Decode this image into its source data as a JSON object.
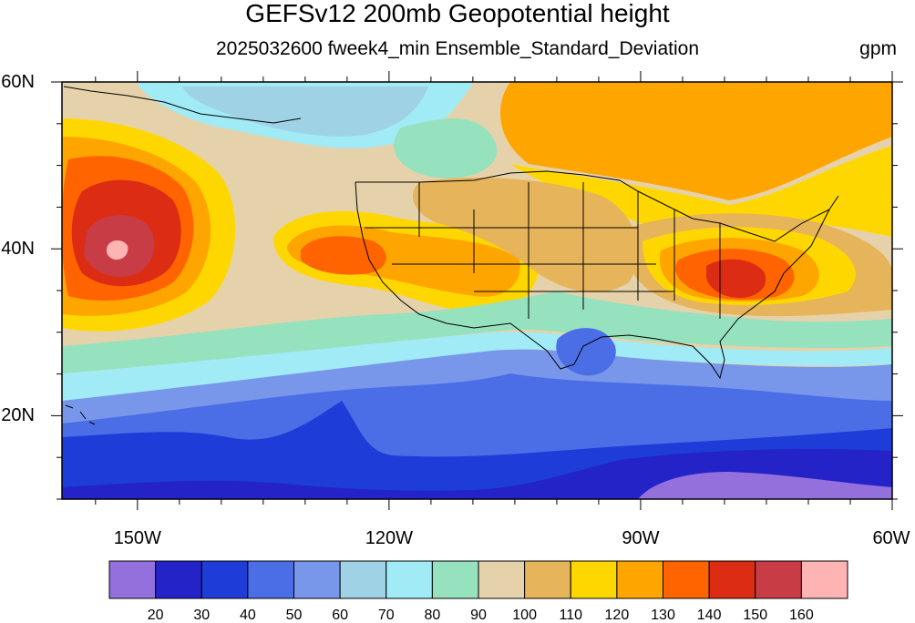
{
  "title": "GEFSv12 200mb Geopotential height",
  "subtitle": "2025032600 fweek4_min Ensemble_Standard_Deviation",
  "units": "gpm",
  "lat_axis": {
    "labels": [
      "60N",
      "40N",
      "20N"
    ],
    "values": [
      60,
      40,
      20
    ]
  },
  "lon_axis": {
    "labels": [
      "150W",
      "120W",
      "90W",
      "60W"
    ],
    "values": [
      -150,
      -120,
      -90,
      -60
    ]
  },
  "map_extent": {
    "lon_min": -159,
    "lon_max": -60,
    "lat_min": 10,
    "lat_max": 60
  },
  "colorbar": {
    "colors": [
      "#9370DB",
      "#2323C8",
      "#1E3CD7",
      "#4B6EE6",
      "#7897EB",
      "#A0D2E6",
      "#A0EBF5",
      "#96E1BE",
      "#E6D2AA",
      "#E6B45A",
      "#FFD700",
      "#FFA500",
      "#FF6400",
      "#DC2D14",
      "#C83C46",
      "#FFB4B4"
    ],
    "labels": [
      "20",
      "30",
      "40",
      "50",
      "60",
      "70",
      "80",
      "90",
      "100",
      "110",
      "120",
      "130",
      "140",
      "150",
      "160"
    ],
    "values": [
      20,
      30,
      40,
      50,
      60,
      70,
      80,
      90,
      100,
      110,
      120,
      130,
      140,
      150,
      160
    ]
  },
  "field_centers": [
    {
      "name": "pacific-max",
      "lon": -153,
      "lat": 40,
      "value": 160
    },
    {
      "name": "carolinas-max",
      "lon": -79,
      "lat": 36.5,
      "value": 140
    },
    {
      "name": "california-max",
      "lon": -128,
      "lat": 39.5,
      "value": 130
    },
    {
      "name": "gulf-min",
      "lon": -93.5,
      "lat": 26.5,
      "value": 55
    },
    {
      "name": "tropical-min",
      "lon": -125,
      "lat": 16,
      "value": 30
    }
  ]
}
